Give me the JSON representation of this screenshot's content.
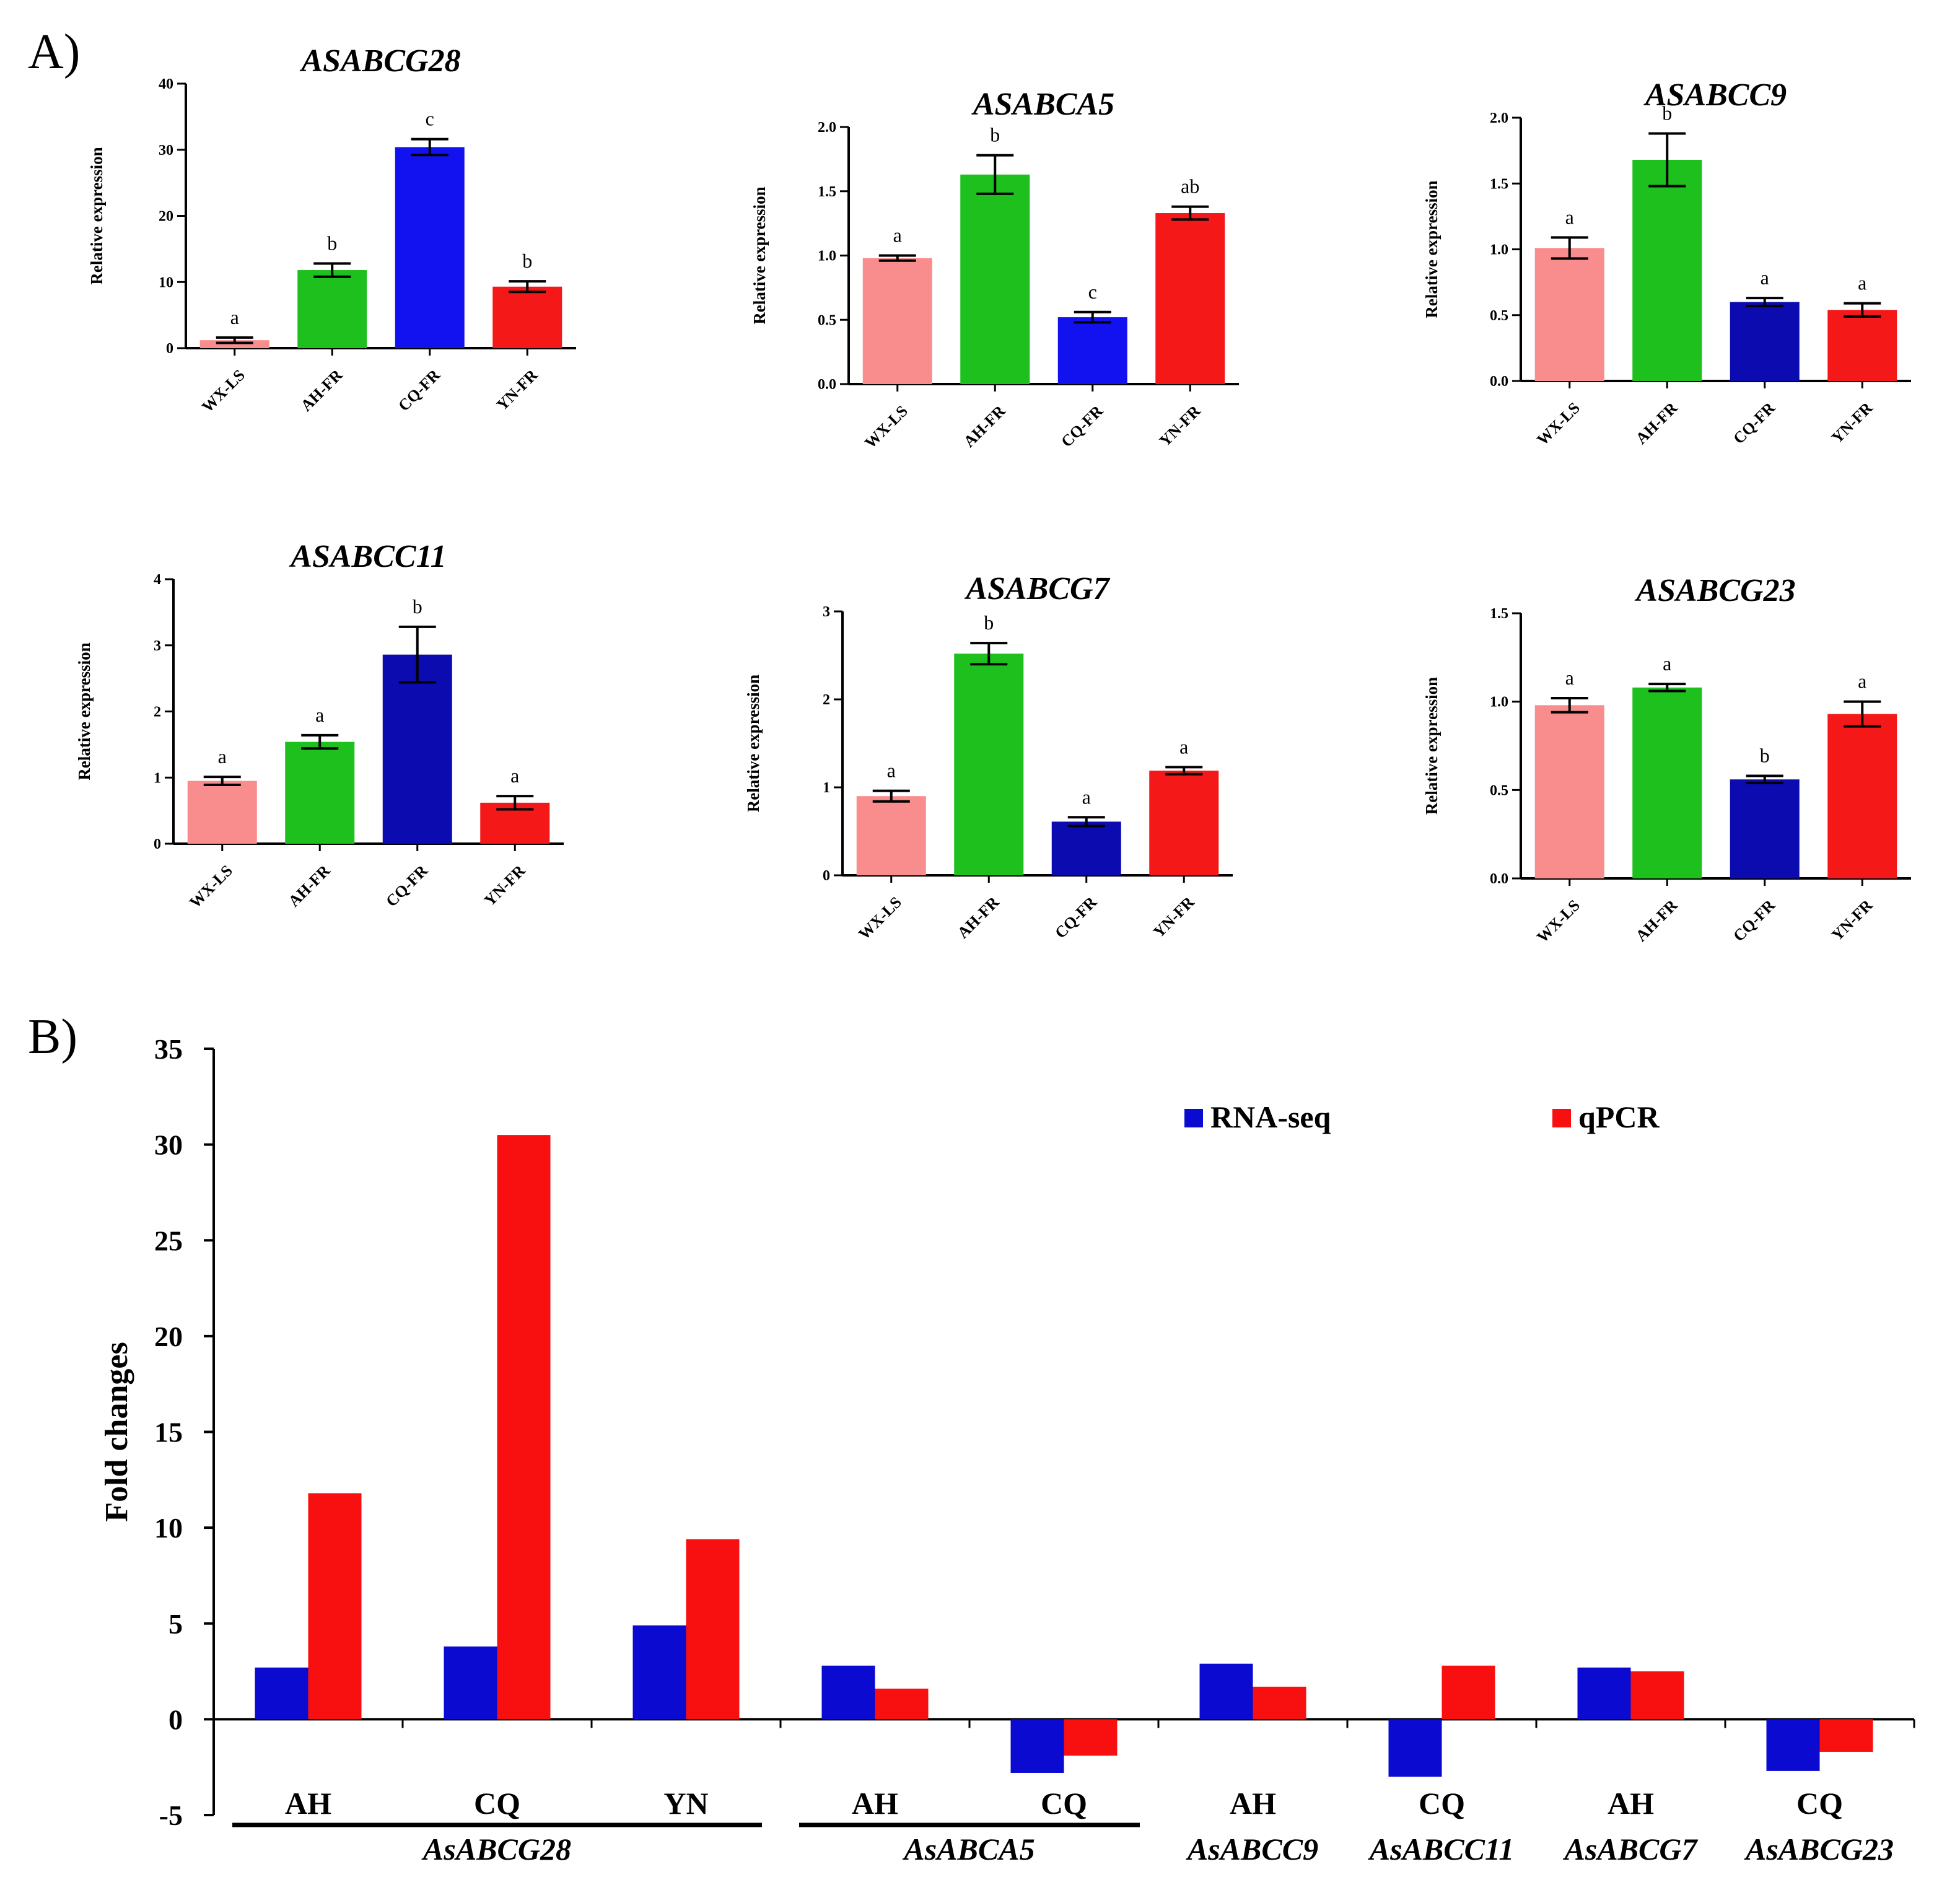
{
  "panel_labels": {
    "a": "A)",
    "b": "B)"
  },
  "colors": {
    "WX-LS": "#f98c8c",
    "AH-FR": "#1dc01d",
    "CQ-FR-bright": "#1212f0",
    "CQ-FR-dark": "#0b0bb0",
    "YN-FR": "#f51818",
    "rna_seq": "#0a0ad0",
    "qpcr": "#f81010",
    "axis": "#000000"
  },
  "chart_data": [
    {
      "type": "bar",
      "id": "ASABCG28",
      "title": "ASABCG28",
      "ylabel": "Relative expression",
      "categories": [
        "WX-LS",
        "AH-FR",
        "CQ-FR",
        "YN-FR"
      ],
      "values": [
        1.2,
        11.8,
        30.4,
        9.3
      ],
      "errors": [
        0.4,
        1.0,
        1.2,
        0.8
      ],
      "significance": [
        "a",
        "b",
        "c",
        "b"
      ],
      "ylim": [
        0,
        40
      ],
      "yticks": [
        0,
        10,
        20,
        30,
        40
      ],
      "ytick_labels": [
        "0",
        "10",
        "20",
        "30",
        "40"
      ],
      "colors": [
        "#f98c8c",
        "#1dc01d",
        "#1212f0",
        "#f51818"
      ]
    },
    {
      "type": "bar",
      "id": "ASABCA5",
      "title": "ASABCA5",
      "ylabel": "Relative expression",
      "categories": [
        "WX-LS",
        "AH-FR",
        "CQ-FR",
        "YN-FR"
      ],
      "values": [
        0.98,
        1.63,
        0.52,
        1.33
      ],
      "errors": [
        0.02,
        0.15,
        0.04,
        0.05
      ],
      "significance": [
        "a",
        "b",
        "c",
        "ab"
      ],
      "ylim": [
        0,
        2
      ],
      "yticks": [
        0,
        0.5,
        1,
        1.5,
        2
      ],
      "ytick_labels": [
        "0.0",
        "0.5",
        "1.0",
        "1.5",
        "2.0"
      ],
      "colors": [
        "#f98c8c",
        "#1dc01d",
        "#1212f0",
        "#f51818"
      ]
    },
    {
      "type": "bar",
      "id": "ASABCC9",
      "title": "ASABCC9",
      "ylabel": "Relative expression",
      "categories": [
        "WX-LS",
        "AH-FR",
        "CQ-FR",
        "YN-FR"
      ],
      "values": [
        1.01,
        1.68,
        0.6,
        0.54
      ],
      "errors": [
        0.08,
        0.2,
        0.03,
        0.05
      ],
      "significance": [
        "a",
        "b",
        "a",
        "a"
      ],
      "ylim": [
        0,
        2
      ],
      "yticks": [
        0,
        0.5,
        1,
        1.5,
        2
      ],
      "ytick_labels": [
        "0.0",
        "0.5",
        "1.0",
        "1.5",
        "2.0"
      ],
      "colors": [
        "#f98c8c",
        "#1dc01d",
        "#0b0bb0",
        "#f51818"
      ]
    },
    {
      "type": "bar",
      "id": "ASABCC11",
      "title": "ASABCC11",
      "ylabel": "Relative expression",
      "categories": [
        "WX-LS",
        "AH-FR",
        "CQ-FR",
        "YN-FR"
      ],
      "values": [
        0.95,
        1.54,
        2.86,
        0.62
      ],
      "errors": [
        0.06,
        0.1,
        0.42,
        0.1
      ],
      "significance": [
        "a",
        "a",
        "b",
        "a"
      ],
      "ylim": [
        0,
        4
      ],
      "yticks": [
        0,
        1,
        2,
        3,
        4
      ],
      "ytick_labels": [
        "0",
        "1",
        "2",
        "3",
        "4"
      ],
      "colors": [
        "#f98c8c",
        "#1dc01d",
        "#0b0bb0",
        "#f51818"
      ]
    },
    {
      "type": "bar",
      "id": "ASABCG7",
      "title": "ASABCG7",
      "ylabel": "Relative expression",
      "categories": [
        "WX-LS",
        "AH-FR",
        "CQ-FR",
        "YN-FR"
      ],
      "values": [
        0.9,
        2.52,
        0.61,
        1.19
      ],
      "errors": [
        0.06,
        0.12,
        0.05,
        0.04
      ],
      "significance": [
        "a",
        "b",
        "a",
        "a"
      ],
      "ylim": [
        0,
        3
      ],
      "yticks": [
        0,
        1,
        2,
        3
      ],
      "ytick_labels": [
        "0",
        "1",
        "2",
        "3"
      ],
      "colors": [
        "#f98c8c",
        "#1dc01d",
        "#0b0bb0",
        "#f51818"
      ]
    },
    {
      "type": "bar",
      "id": "ASABCG23",
      "title": "ASABCG23",
      "ylabel": "Relative expression",
      "categories": [
        "WX-LS",
        "AH-FR",
        "CQ-FR",
        "YN-FR"
      ],
      "values": [
        0.98,
        1.08,
        0.56,
        0.93
      ],
      "errors": [
        0.04,
        0.02,
        0.02,
        0.07
      ],
      "significance": [
        "a",
        "a",
        "b",
        "a"
      ],
      "ylim": [
        0,
        1.5
      ],
      "yticks": [
        0,
        0.5,
        1,
        1.5
      ],
      "ytick_labels": [
        "0.0",
        "0.5",
        "1.0",
        "1.5"
      ],
      "colors": [
        "#f98c8c",
        "#1dc01d",
        "#0b0bb0",
        "#f51818"
      ]
    },
    {
      "type": "bar",
      "id": "fold-change",
      "ylabel": "Fold changes",
      "ylim": [
        -5,
        35
      ],
      "yticks": [
        -5,
        0,
        5,
        10,
        15,
        20,
        25,
        30,
        35
      ],
      "ytick_labels": [
        "-5",
        "0",
        "5",
        "10",
        "15",
        "20",
        "25",
        "30",
        "35"
      ],
      "groups": [
        "AH",
        "CQ",
        "YN",
        "AH",
        "CQ",
        "AH",
        "CQ",
        "AH",
        "CQ"
      ],
      "genes": [
        {
          "name": "AsABCG28",
          "start": 0,
          "end": 2,
          "underline": true
        },
        {
          "name": "AsABCA5",
          "start": 3,
          "end": 4,
          "underline": true
        },
        {
          "name": "AsABCC9",
          "start": 5,
          "end": 5,
          "underline": false
        },
        {
          "name": "AsABCC11",
          "start": 6,
          "end": 6,
          "underline": false
        },
        {
          "name": "AsABCG7",
          "start": 7,
          "end": 7,
          "underline": false
        },
        {
          "name": "AsABCG23",
          "start": 8,
          "end": 8,
          "underline": false
        }
      ],
      "series": [
        {
          "name": "RNA-seq",
          "color": "#0a0ad0",
          "values": [
            2.7,
            3.8,
            4.9,
            2.8,
            -2.8,
            2.9,
            -3.0,
            2.7,
            -2.7
          ]
        },
        {
          "name": "qPCR",
          "color": "#f81010",
          "values": [
            11.8,
            30.5,
            9.4,
            1.6,
            -1.9,
            1.7,
            2.8,
            2.5,
            -1.7
          ]
        }
      ],
      "legend_position": "top-right"
    }
  ]
}
